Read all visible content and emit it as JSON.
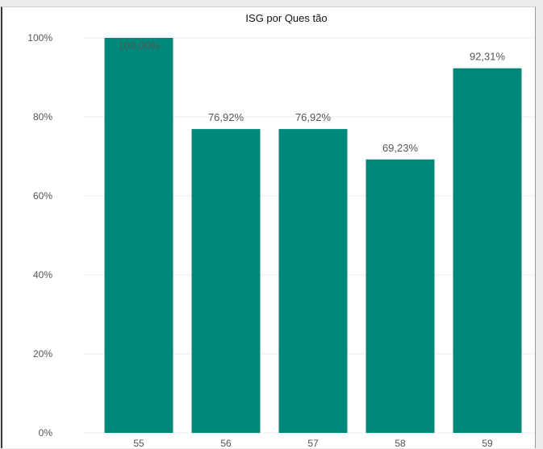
{
  "chart_data": {
    "type": "bar",
    "title": "ISG por Ques tão",
    "categories": [
      "55",
      "56",
      "57",
      "58",
      "59"
    ],
    "values": [
      100.0,
      76.92,
      76.92,
      69.23,
      92.31
    ],
    "data_labels": [
      "100,00%",
      "76,92%",
      "76,92%",
      "69,23%",
      "92,31%"
    ],
    "y_ticks": [
      0,
      20,
      40,
      60,
      80,
      100
    ],
    "y_tick_labels": [
      "0%",
      "20%",
      "40%",
      "60%",
      "80%",
      "100%"
    ],
    "ylim": [
      0,
      100
    ],
    "grid": true,
    "xlabel": "",
    "ylabel": "",
    "bar_color": "#00897b",
    "inside_label_color": "#5aa89e",
    "outside_label_color": "#555555"
  }
}
